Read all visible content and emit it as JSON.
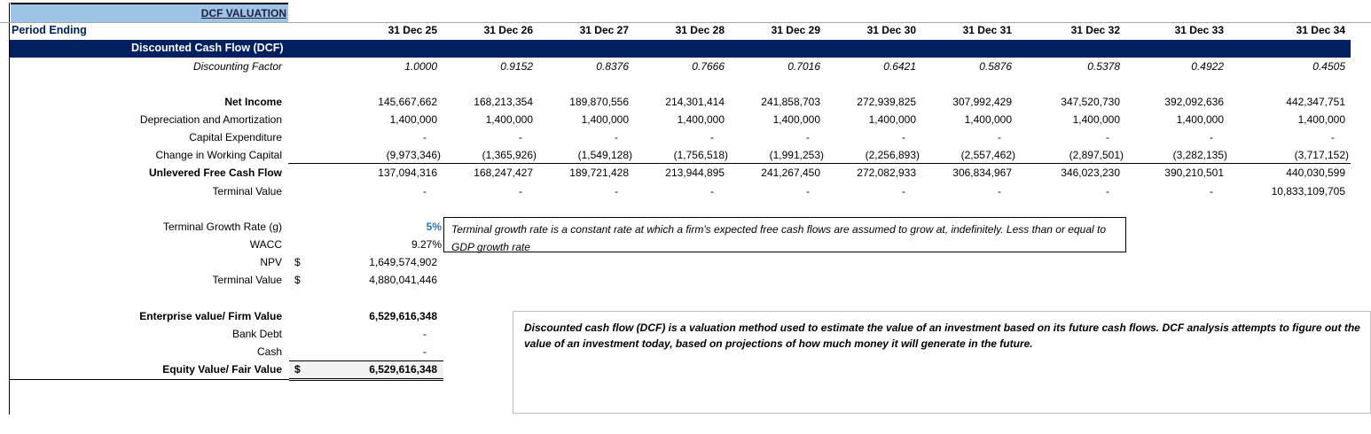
{
  "sheet": {
    "title": "DCF VALUATION",
    "period_label": "Period Ending",
    "section_title": "Discounted Cash Flow (DCF)",
    "periods": [
      "31 Dec 25",
      "31 Dec 26",
      "31 Dec 27",
      "31 Dec 28",
      "31 Dec 29",
      "31 Dec 30",
      "31 Dec 31",
      "31 Dec 32",
      "31 Dec 33",
      "31 Dec 34"
    ],
    "rows": {
      "discounting_factor": {
        "label": "Discounting Factor",
        "values": [
          "1.0000",
          "0.9152",
          "0.8376",
          "0.7666",
          "0.7016",
          "0.6421",
          "0.5876",
          "0.5378",
          "0.4922",
          "0.4505"
        ]
      },
      "net_income": {
        "label": "Net Income",
        "values": [
          "145,667,662",
          "168,213,354",
          "189,870,556",
          "214,301,414",
          "241,858,703",
          "272,939,825",
          "307,992,429",
          "347,520,730",
          "392,092,636",
          "442,347,751"
        ]
      },
      "depreciation": {
        "label": "Depreciation and Amortization",
        "values": [
          "1,400,000",
          "1,400,000",
          "1,400,000",
          "1,400,000",
          "1,400,000",
          "1,400,000",
          "1,400,000",
          "1,400,000",
          "1,400,000",
          "1,400,000"
        ]
      },
      "capex": {
        "label": "Capital Expenditure",
        "values": [
          "-",
          "-",
          "-",
          "-",
          "-",
          "-",
          "-",
          "-",
          "-",
          "-"
        ]
      },
      "working_capital": {
        "label": "Change in Working Capital",
        "values": [
          "(9,973,346)",
          "(1,365,926)",
          "(1,549,128)",
          "(1,756,518)",
          "(1,991,253)",
          "(2,256,893)",
          "(2,557,462)",
          "(2,897,501)",
          "(3,282,135)",
          "(3,717,152)"
        ]
      },
      "ufcf": {
        "label": "Unlevered Free Cash Flow",
        "values": [
          "137,094,316",
          "168,247,427",
          "189,721,428",
          "213,944,895",
          "241,267,450",
          "272,082,933",
          "306,834,967",
          "346,023,230",
          "390,210,501",
          "440,030,599"
        ]
      },
      "terminal_value": {
        "label": "Terminal Value",
        "values": [
          "-",
          "-",
          "-",
          "-",
          "-",
          "-",
          "-",
          "-",
          "-",
          "10,833,109,705"
        ]
      }
    },
    "assumptions": {
      "growth_label": "Terminal Growth Rate (g)",
      "growth_value": "5%",
      "wacc_label": "WACC",
      "wacc_value": "9.27%",
      "npv_label": "NPV",
      "npv_currency": "$",
      "npv_value": "1,649,574,902",
      "tv_label": "Terminal Value",
      "tv_currency": "$",
      "tv_value": "4,880,041,446"
    },
    "valuation": {
      "ev_label": "Enterprise value/ Firm Value",
      "ev_value": "6,529,616,348",
      "debt_label": "Bank Debt",
      "debt_value": "-",
      "cash_label": "Cash",
      "cash_value": "-",
      "equity_label": "Equity Value/ Fair Value",
      "equity_currency": "$",
      "equity_value": "6,529,616,348"
    },
    "notes": {
      "growth_note": "Terminal growth rate is a constant rate at which a firm's expected free cash flows are assumed to grow at, indefinitely. Less than or equal to GDP growth rate",
      "dcf_note": "Discounted cash flow (DCF) is a valuation method used to estimate the value of an investment based on its future cash flows. DCF analysis attempts to figure out the value of an investment today, based on projections of how much money it will generate in the future."
    },
    "colors": {
      "header_band": "#002060",
      "title_fill": "#9dc3e6",
      "input_blue": "#2e75b6",
      "period_label": "#002060"
    }
  }
}
